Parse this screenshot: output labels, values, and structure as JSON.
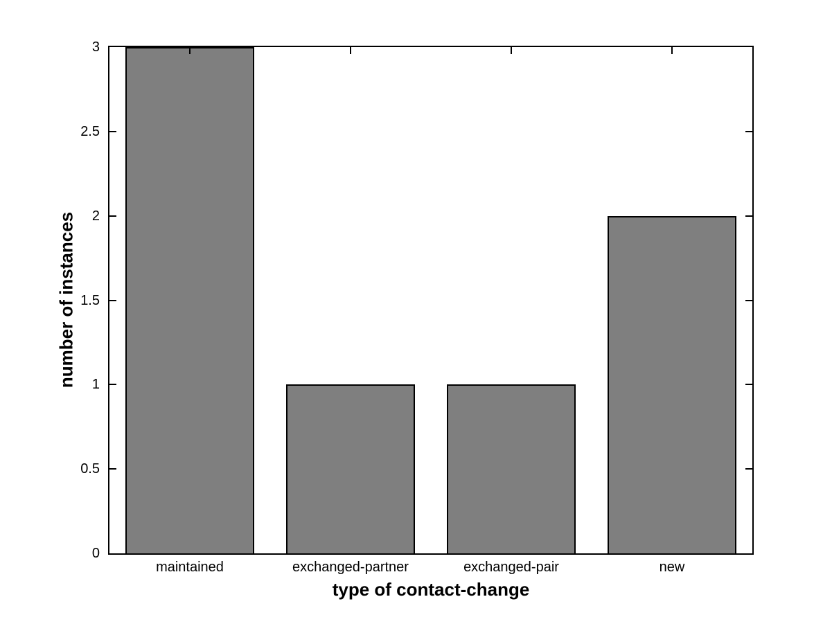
{
  "chart_data": {
    "type": "bar",
    "title": "",
    "categories": [
      "maintained",
      "exchanged-partner",
      "exchanged-pair",
      "new"
    ],
    "values": [
      3,
      1,
      1,
      2
    ],
    "xlabel": "type of contact-change",
    "ylabel": "number of instances",
    "ylim": [
      0,
      3
    ],
    "yticks": [
      0,
      0.5,
      1,
      1.5,
      2,
      2.5,
      3
    ],
    "ytick_labels": [
      "0",
      "0.5",
      "1",
      "1.5",
      "2",
      "2.5",
      "3"
    ],
    "bar_width_fraction": 0.8,
    "bar_color": "#7f7f7f",
    "bar_edge_color": "#000000",
    "axis_color": "#000000",
    "background_color": "#ffffff",
    "grid": false,
    "legend": null
  }
}
